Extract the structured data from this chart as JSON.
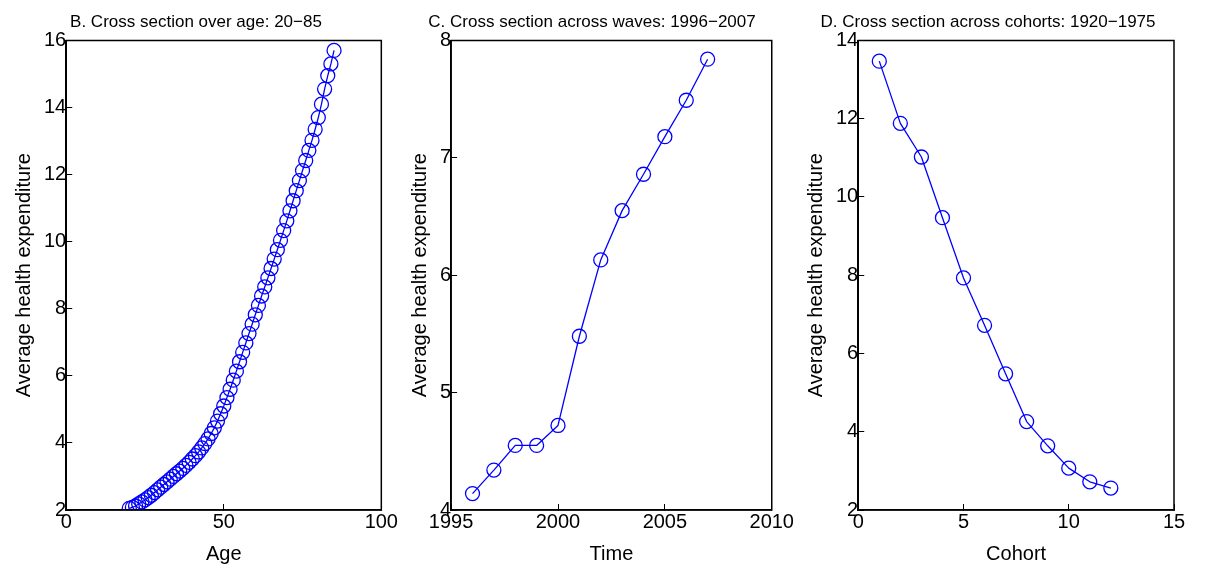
{
  "chart_data": [
    {
      "type": "line",
      "title": "B. Cross section over age: 20−85",
      "xlabel": "Age",
      "ylabel": "Average health expenditure",
      "marker": "circle",
      "line_style": "solid",
      "grid": false,
      "legend": false,
      "x": [
        20,
        21,
        22,
        23,
        24,
        25,
        26,
        27,
        28,
        29,
        30,
        31,
        32,
        33,
        34,
        35,
        36,
        37,
        38,
        39,
        40,
        41,
        42,
        43,
        44,
        45,
        46,
        47,
        48,
        49,
        50,
        51,
        52,
        53,
        54,
        55,
        56,
        57,
        58,
        59,
        60,
        61,
        62,
        63,
        64,
        65,
        66,
        67,
        68,
        69,
        70,
        71,
        72,
        73,
        74,
        75,
        76,
        77,
        78,
        79,
        80,
        81,
        82,
        83,
        84,
        85
      ],
      "series": [
        {
          "color": "#0000ff",
          "values": [
            2.05,
            2.08,
            2.12,
            2.18,
            2.24,
            2.3,
            2.37,
            2.44,
            2.52,
            2.6,
            2.68,
            2.76,
            2.84,
            2.92,
            3.0,
            3.08,
            3.16,
            3.24,
            3.33,
            3.42,
            3.52,
            3.62,
            3.73,
            3.85,
            3.98,
            4.12,
            4.28,
            4.45,
            4.65,
            4.87,
            5.1,
            5.35,
            5.6,
            5.87,
            6.14,
            6.42,
            6.7,
            6.98,
            7.26,
            7.54,
            7.82,
            8.1,
            8.38,
            8.65,
            8.92,
            9.2,
            9.48,
            9.76,
            10.04,
            10.33,
            10.62,
            10.92,
            11.22,
            11.52,
            11.82,
            12.12,
            12.42,
            12.72,
            13.02,
            13.35,
            13.7,
            14.1,
            14.55,
            14.95,
            15.3,
            15.7
          ]
        }
      ],
      "xlim": [
        0,
        100
      ],
      "xticks": [
        0,
        50,
        100
      ],
      "ylim": [
        2,
        16
      ],
      "yticks": [
        2,
        4,
        6,
        8,
        10,
        12,
        14,
        16
      ]
    },
    {
      "type": "line",
      "title": "C. Cross section across waves: 1996−2007",
      "xlabel": "Time",
      "ylabel": "Average health expenditure",
      "marker": "circle",
      "line_style": "solid",
      "grid": false,
      "legend": false,
      "x": [
        1996,
        1997,
        1998,
        1999,
        2000,
        2001,
        2002,
        2003,
        2004,
        2005,
        2006,
        2007
      ],
      "series": [
        {
          "color": "#0000ff",
          "values": [
            4.14,
            4.34,
            4.55,
            4.55,
            4.72,
            5.48,
            6.13,
            6.55,
            6.86,
            7.18,
            7.49,
            7.84
          ]
        }
      ],
      "xlim": [
        1995,
        2010
      ],
      "xticks": [
        1995,
        2000,
        2005,
        2010
      ],
      "ylim": [
        4,
        8
      ],
      "yticks": [
        4,
        5,
        6,
        7,
        8
      ]
    },
    {
      "type": "line",
      "title": "D. Cross section across cohorts: 1920−1975",
      "xlabel": "Cohort",
      "ylabel": "Average health expenditure",
      "marker": "circle",
      "line_style": "solid",
      "grid": false,
      "legend": false,
      "x": [
        1,
        2,
        3,
        4,
        5,
        6,
        7,
        8,
        9,
        10,
        11,
        12
      ],
      "series": [
        {
          "color": "#0000ff",
          "values": [
            13.47,
            11.88,
            11.02,
            9.47,
            7.93,
            6.72,
            5.48,
            4.26,
            3.64,
            3.07,
            2.72,
            2.56
          ]
        }
      ],
      "xlim": [
        0,
        15
      ],
      "xticks": [
        0,
        5,
        10,
        15
      ],
      "ylim": [
        2,
        14
      ],
      "yticks": [
        2,
        4,
        6,
        8,
        10,
        12,
        14
      ]
    }
  ]
}
